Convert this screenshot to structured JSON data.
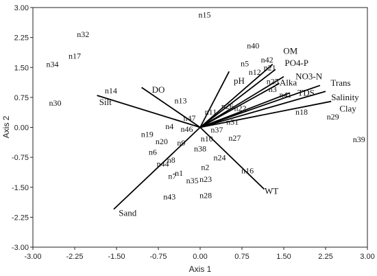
{
  "chart_data": {
    "type": "scatter",
    "subtype": "ordination-biplot",
    "title": "",
    "xlabel": "Axis 1",
    "ylabel": "Axis 2",
    "xlim": [
      -3.0,
      3.0
    ],
    "ylim": [
      -3.0,
      3.0
    ],
    "xticks": [
      "-3.00",
      "-2.25",
      "-1.50",
      "-0.75",
      "0.00",
      "0.75",
      "1.50",
      "2.25",
      "3.00"
    ],
    "yticks": [
      "3.00",
      "2.25",
      "1.50",
      "0.75",
      "0.00",
      "-0.75",
      "-1.50",
      "-2.25",
      "-3.00"
    ],
    "grid": false,
    "sites": [
      {
        "label": "n15",
        "x": 0.08,
        "y": 2.82
      },
      {
        "label": "n32",
        "x": -2.1,
        "y": 2.33
      },
      {
        "label": "n17",
        "x": -2.25,
        "y": 1.79
      },
      {
        "label": "n34",
        "x": -2.65,
        "y": 1.58
      },
      {
        "label": "n30",
        "x": -2.6,
        "y": 0.61
      },
      {
        "label": "n14",
        "x": -1.6,
        "y": 0.92
      },
      {
        "label": "n13",
        "x": -0.35,
        "y": 0.67
      },
      {
        "label": "n40",
        "x": 0.95,
        "y": 2.05
      },
      {
        "label": "n5",
        "x": 0.8,
        "y": 1.6
      },
      {
        "label": "n42",
        "x": 1.2,
        "y": 1.69
      },
      {
        "label": "n21",
        "x": 1.25,
        "y": 1.5
      },
      {
        "label": "n12",
        "x": 0.98,
        "y": 1.38
      },
      {
        "label": "n25",
        "x": 1.3,
        "y": 1.15
      },
      {
        "label": "n3",
        "x": 1.3,
        "y": 0.95
      },
      {
        "label": "n41",
        "x": 1.53,
        "y": 0.82
      },
      {
        "label": "n18",
        "x": 1.82,
        "y": 0.39
      },
      {
        "label": "n29",
        "x": 2.38,
        "y": 0.27
      },
      {
        "label": "n39",
        "x": 2.85,
        "y": -0.3
      },
      {
        "label": "n26",
        "x": 0.49,
        "y": 0.53
      },
      {
        "label": "n22",
        "x": 0.72,
        "y": 0.48
      },
      {
        "label": "n11",
        "x": 0.19,
        "y": 0.39
      },
      {
        "label": "n47",
        "x": -0.19,
        "y": 0.23
      },
      {
        "label": "n31",
        "x": 0.58,
        "y": 0.14
      },
      {
        "label": "n37",
        "x": 0.3,
        "y": -0.06
      },
      {
        "label": "n4",
        "x": -0.55,
        "y": 0.03
      },
      {
        "label": "n46",
        "x": -0.24,
        "y": -0.04
      },
      {
        "label": "n19",
        "x": -0.95,
        "y": -0.17
      },
      {
        "label": "n10",
        "x": 0.12,
        "y": -0.28
      },
      {
        "label": "n27",
        "x": 0.62,
        "y": -0.27
      },
      {
        "label": "n20",
        "x": -0.69,
        "y": -0.35
      },
      {
        "label": "n9",
        "x": -0.34,
        "y": -0.39
      },
      {
        "label": "n38",
        "x": 0.0,
        "y": -0.53
      },
      {
        "label": "n6",
        "x": -0.85,
        "y": -0.62
      },
      {
        "label": "n8",
        "x": -0.52,
        "y": -0.82
      },
      {
        "label": "n24",
        "x": 0.35,
        "y": -0.76
      },
      {
        "label": "n44",
        "x": -0.67,
        "y": -0.91
      },
      {
        "label": "n2",
        "x": 0.09,
        "y": -1.0
      },
      {
        "label": "n16",
        "x": 0.85,
        "y": -1.08
      },
      {
        "label": "n1",
        "x": -0.38,
        "y": -1.14
      },
      {
        "label": "n7",
        "x": -0.5,
        "y": -1.22
      },
      {
        "label": "n35",
        "x": -0.14,
        "y": -1.33
      },
      {
        "label": "n23",
        "x": 0.1,
        "y": -1.3
      },
      {
        "label": "n43",
        "x": -0.55,
        "y": -1.74
      },
      {
        "label": "n28",
        "x": 0.1,
        "y": -1.7
      }
    ],
    "vectors": [
      {
        "label": "OM",
        "x": 1.3,
        "y": 1.58,
        "label_x": 1.62,
        "label_y": 1.91
      },
      {
        "label": "PO4-P",
        "x": 1.35,
        "y": 1.45,
        "label_x": 1.73,
        "label_y": 1.61
      },
      {
        "label": "NO3-N",
        "x": 1.5,
        "y": 1.27,
        "label_x": 1.95,
        "label_y": 1.27
      },
      {
        "label": "Alka",
        "x": 1.42,
        "y": 1.1,
        "label_x": 1.58,
        "label_y": 1.12
      },
      {
        "label": "TDS",
        "x": 1.6,
        "y": 0.86,
        "label_x": 1.9,
        "label_y": 0.86
      },
      {
        "label": "Trans",
        "x": 2.15,
        "y": 1.05,
        "label_x": 2.52,
        "label_y": 1.11
      },
      {
        "label": "Salinity",
        "x": 2.25,
        "y": 0.9,
        "label_x": 2.6,
        "label_y": 0.75
      },
      {
        "label": "Clay",
        "x": 2.35,
        "y": 0.65,
        "label_x": 2.65,
        "label_y": 0.46
      },
      {
        "label": "pH",
        "x": 0.52,
        "y": 1.4,
        "label_x": 0.7,
        "label_y": 1.16
      },
      {
        "label": "DO",
        "x": -1.05,
        "y": 1.0,
        "label_x": -0.75,
        "label_y": 0.94
      },
      {
        "label": "Silt",
        "x": -1.85,
        "y": 0.8,
        "label_x": -1.7,
        "label_y": 0.63
      },
      {
        "label": "Sand",
        "x": -1.55,
        "y": -2.05,
        "label_x": -1.3,
        "label_y": -2.15
      },
      {
        "label": "WT",
        "x": 1.15,
        "y": -1.55,
        "label_x": 1.28,
        "label_y": -1.6
      }
    ]
  }
}
